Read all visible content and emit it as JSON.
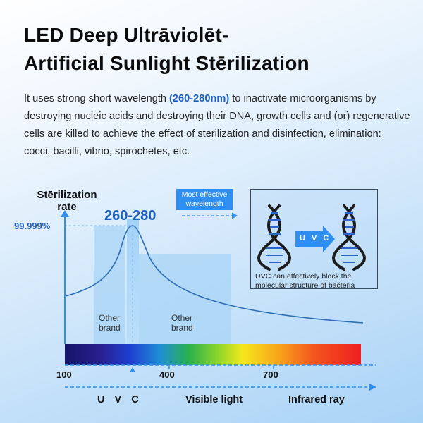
{
  "title": {
    "line1": "LED Deep Ultrāviolēt-",
    "line2": "Artificial Sunlight Stērilization"
  },
  "description": {
    "before": "It uses strong short wavelength ",
    "highlight": "(260-280nm)",
    "after": " to inactivate microorganisms by destroying nucleic acids and destroying their DNA, growth cells and (or) regenerative cells are killed to achieve the effect of sterilization and disinfection, elimination: cocci, bacilli, vibrio, spirochetes, etc."
  },
  "graph": {
    "y_label_line1": "Stērilization",
    "y_label_line2": "rate",
    "max_rate": "99.999%",
    "peak_label": "260-280",
    "badge_line1": "Most effective",
    "badge_line2": "wavelength",
    "brand_left_line1": "Other",
    "brand_left_line2": "brand",
    "brand_right_line1": "Other",
    "brand_right_line2": "brand",
    "ticks": [
      "100",
      "400",
      "700"
    ],
    "regions": [
      "U V C",
      "Visible light",
      "Infrared ray"
    ]
  },
  "dna_panel": {
    "arrow_label": "U V C",
    "caption": "UVC can effectively block the molecular structure of bačtēria"
  },
  "colors": {
    "accent_blue": "#1f5fc0",
    "badge_blue": "#2f8ff0",
    "axis_blue": "#2f8ff0",
    "curve": "#2c6fb4"
  },
  "icons": [
    "dna-icon",
    "dna-icon",
    "arrow-right-icon"
  ]
}
